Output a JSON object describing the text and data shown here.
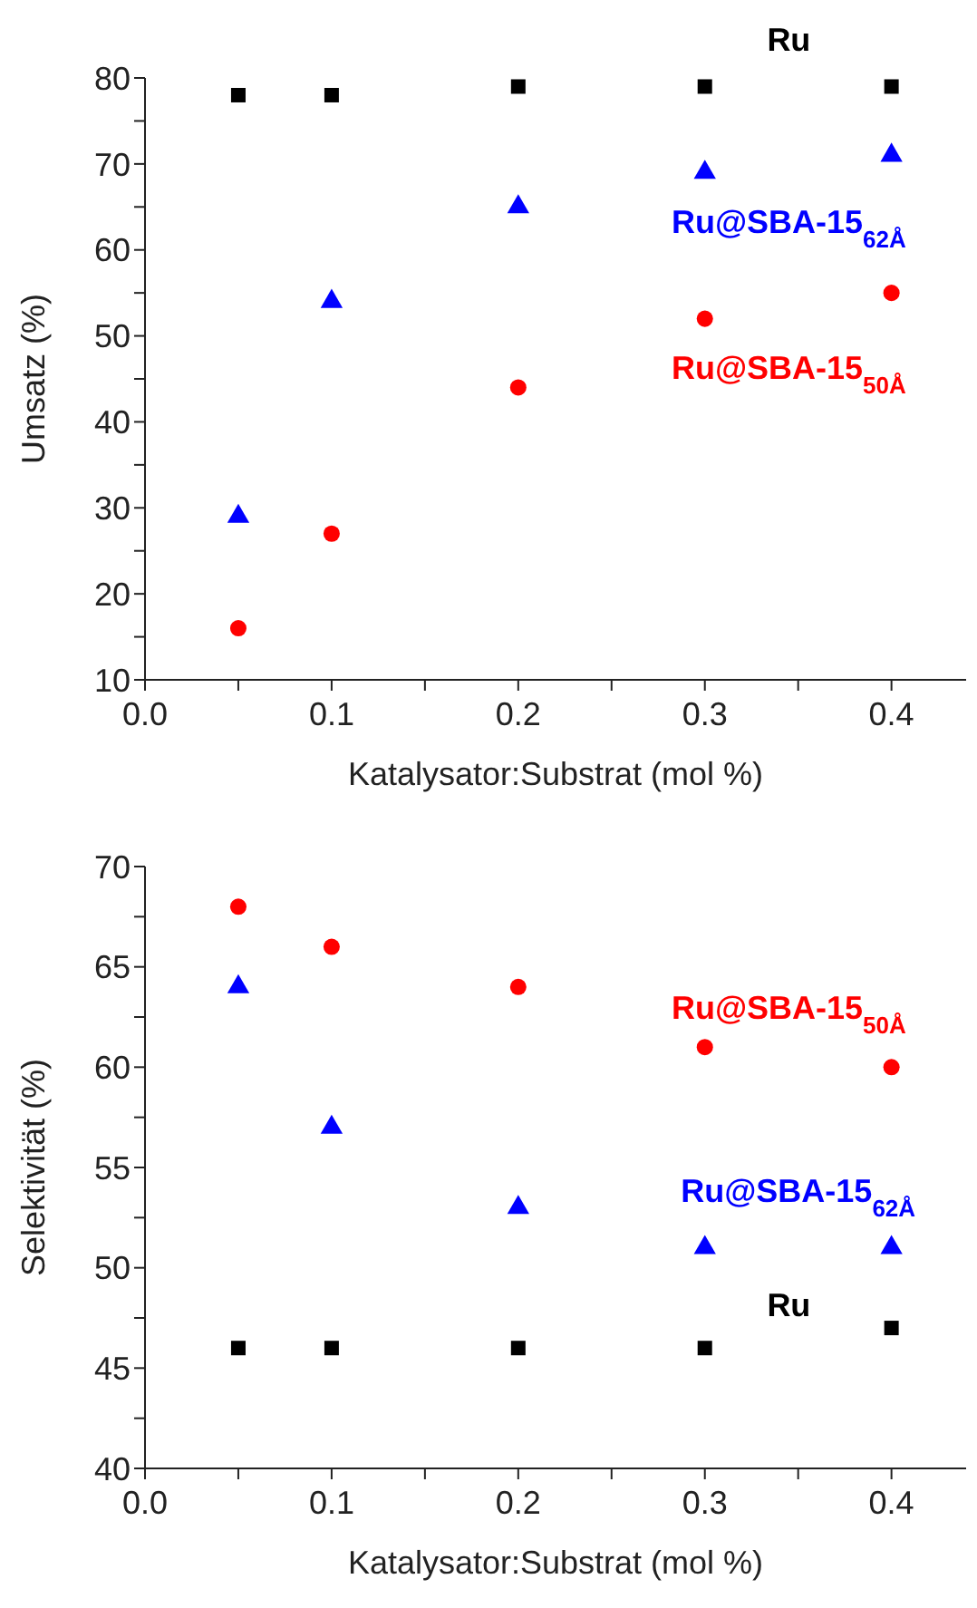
{
  "chart_data": [
    {
      "type": "scatter",
      "ylabel": "Umsatz (%)",
      "xlabel": "Katalysator:Substrat (mol %)",
      "x": [
        0.05,
        0.1,
        0.2,
        0.3,
        0.4
      ],
      "xlim": [
        0,
        0.44
      ],
      "xticks": [
        {
          "value": 0,
          "label": "0.0"
        },
        {
          "value": 0.05,
          "label": null
        },
        0.1,
        {
          "value": 0.15,
          "label": null
        },
        0.2,
        {
          "value": 0.25,
          "label": null
        },
        0.3,
        {
          "value": 0.35,
          "label": null
        },
        0.4
      ],
      "ylim": [
        10,
        80
      ],
      "yticks": [
        10,
        {
          "value": 15,
          "label": null
        },
        20,
        {
          "value": 25,
          "label": null
        },
        30,
        {
          "value": 35,
          "label": null
        },
        40,
        {
          "value": 45,
          "label": null
        },
        50,
        {
          "value": 55,
          "label": null
        },
        60,
        {
          "value": 65,
          "label": null
        },
        70,
        {
          "value": 75,
          "label": null
        },
        80
      ],
      "grid": false,
      "series": [
        {
          "name": "Ru",
          "color": "#000000",
          "marker": "square",
          "values": [
            78,
            78,
            79,
            79,
            79
          ]
        },
        {
          "name": "Ru@SBA-15$_{62Å}$",
          "color": "#0000ff",
          "marker": "triangle",
          "values": [
            29,
            54,
            65,
            69,
            71
          ]
        },
        {
          "name": "Ru@SBA-15$_{50Å}$",
          "color": "#ff0000",
          "marker": "circle",
          "values": [
            16,
            27,
            44,
            52,
            55
          ]
        }
      ]
    },
    {
      "type": "scatter",
      "ylabel": "Selektivität (%)",
      "xlabel": "Katalysator:Substrat (mol %)",
      "x": [
        0.05,
        0.1,
        0.2,
        0.3,
        0.4
      ],
      "xlim": [
        0,
        0.44
      ],
      "xticks": [
        {
          "value": 0,
          "label": "0.0"
        },
        {
          "value": 0.05,
          "label": null
        },
        0.1,
        {
          "value": 0.15,
          "label": null
        },
        0.2,
        {
          "value": 0.25,
          "label": null
        },
        0.3,
        {
          "value": 0.35,
          "label": null
        },
        0.4
      ],
      "ylim": [
        40,
        70
      ],
      "yticks": [
        40,
        {
          "value": 42.5,
          "label": null
        },
        45,
        {
          "value": 47.5,
          "label": null
        },
        50,
        {
          "value": 52.5,
          "label": null
        },
        55,
        {
          "value": 57.5,
          "label": null
        },
        60,
        {
          "value": 62.5,
          "label": null
        },
        65,
        {
          "value": 67.5,
          "label": null
        },
        70
      ],
      "grid": false,
      "series": [
        {
          "name": "Ru",
          "color": "#000000",
          "marker": "square",
          "values": [
            46,
            46,
            46,
            46,
            47
          ]
        },
        {
          "name": "Ru@SBA-15$_{62Å}$",
          "color": "#0000ff",
          "marker": "triangle",
          "values": [
            64,
            57,
            53,
            51,
            51
          ]
        },
        {
          "name": "Ru@SBA-15$_{50Å}$",
          "color": "#ff0000",
          "marker": "circle",
          "values": [
            68,
            66,
            64,
            61,
            60
          ]
        }
      ]
    }
  ]
}
